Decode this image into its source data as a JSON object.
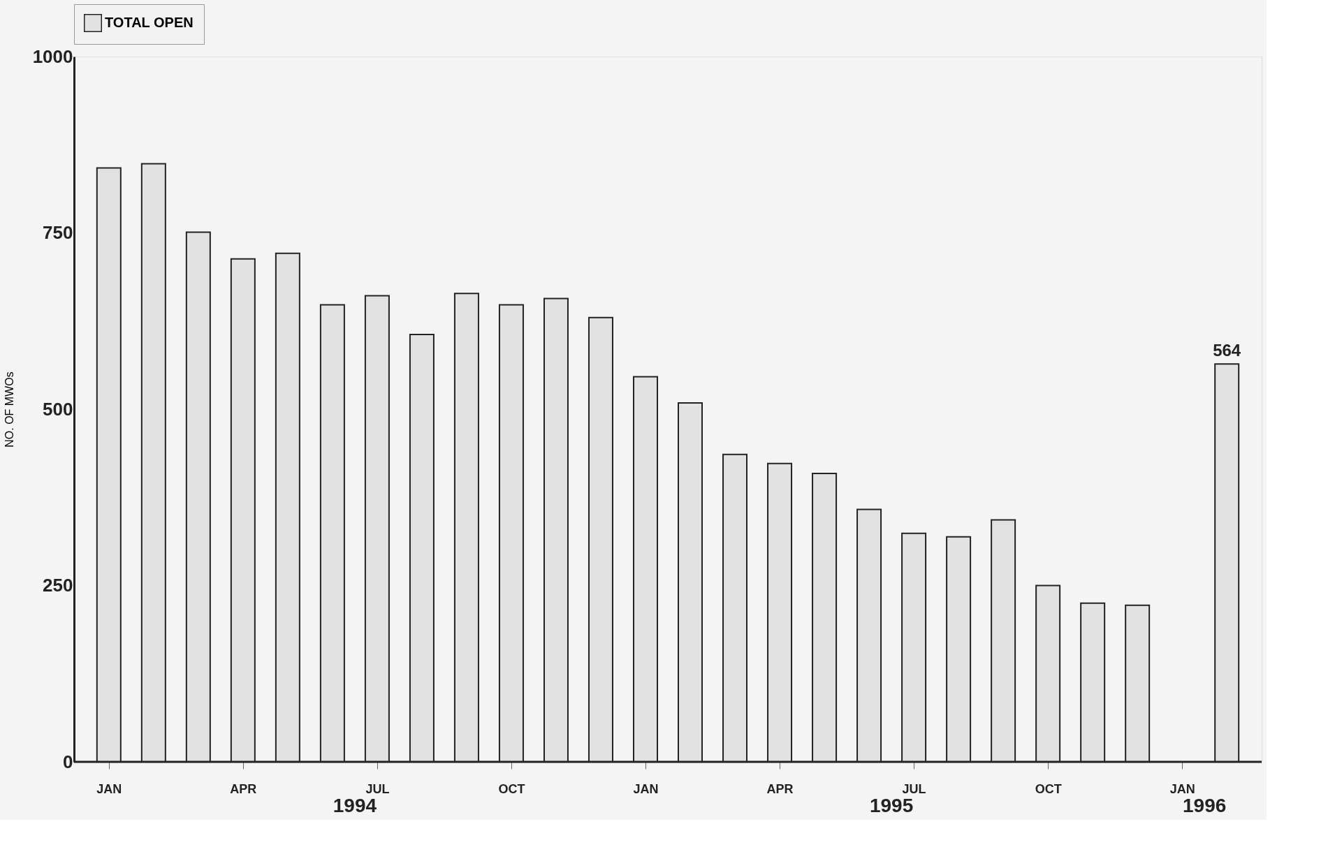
{
  "chart_data": {
    "type": "bar",
    "categories": [
      "JAN",
      null,
      null,
      "APR",
      null,
      null,
      "JUL",
      null,
      null,
      "OCT",
      null,
      null,
      "JAN",
      null,
      null,
      "APR",
      null,
      null,
      "JUL",
      null,
      null,
      "OCT",
      null,
      null,
      "JAN",
      null
    ],
    "series": [
      {
        "name": "TOTAL OPEN",
        "color": "#e2e2e2",
        "values": [
          842,
          848,
          751,
          713,
          721,
          648,
          661,
          606,
          664,
          648,
          657,
          630,
          546,
          509,
          436,
          423,
          409,
          358,
          324,
          319,
          343,
          250,
          225,
          222,
          null,
          564
        ],
        "value_labels": [
          null,
          null,
          null,
          null,
          null,
          null,
          null,
          null,
          null,
          null,
          null,
          null,
          null,
          null,
          null,
          null,
          null,
          null,
          null,
          null,
          null,
          null,
          null,
          null,
          null,
          "564"
        ]
      }
    ],
    "ylabel": "NO. OF MWOs",
    "ylim": [
      0,
      1000
    ],
    "yticks": [
      0,
      250,
      500,
      750,
      1000
    ],
    "annotations": [
      "1994",
      "1995",
      "1996"
    ],
    "legend": "top",
    "grid": false
  }
}
